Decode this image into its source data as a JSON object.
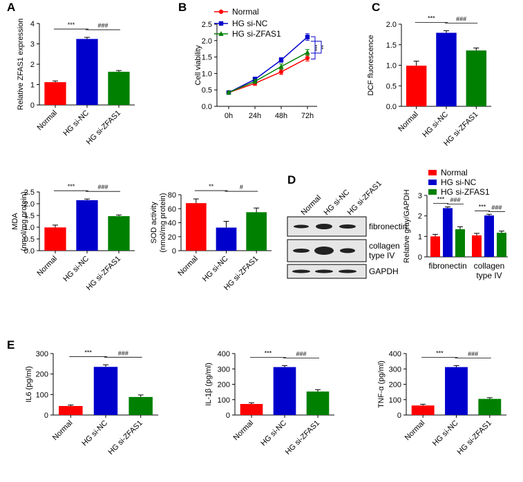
{
  "colors": {
    "normal": "#ff0000",
    "sinc": "#0000cc",
    "zfas1": "#008000",
    "axis": "#000000",
    "blot_band": "#222222"
  },
  "panel_letters": [
    "A",
    "B",
    "C",
    "D",
    "E"
  ],
  "chart_data": [
    {
      "id": "A",
      "type": "bar",
      "ylabel": "Relative ZFAS1 expression",
      "categories": [
        "Normal",
        "HG si-NC",
        "HG si-ZFAS1"
      ],
      "values": [
        1.12,
        3.24,
        1.63
      ],
      "errors": [
        0.06,
        0.08,
        0.06
      ],
      "ylim": [
        0,
        4
      ],
      "yticks": [
        0,
        1,
        2,
        3,
        4
      ],
      "annotations": [
        {
          "from": 0,
          "to": 1,
          "text": "***"
        },
        {
          "from": 1,
          "to": 2,
          "text": "###"
        }
      ]
    },
    {
      "id": "B",
      "type": "line",
      "ylabel": "Cell viability",
      "x": [
        "0h",
        "24h",
        "48h",
        "72h"
      ],
      "series": [
        {
          "name": "Normal",
          "values": [
            0.42,
            0.7,
            1.05,
            1.47
          ],
          "errors": [
            0.04,
            0.06,
            0.08,
            0.09
          ],
          "marker": "circle"
        },
        {
          "name": "HG si-NC",
          "values": [
            0.42,
            0.82,
            1.41,
            2.11
          ],
          "errors": [
            0.04,
            0.07,
            0.07,
            0.1
          ],
          "marker": "square"
        },
        {
          "name": "HG si-ZFAS1",
          "values": [
            0.42,
            0.76,
            1.21,
            1.64
          ],
          "errors": [
            0.04,
            0.06,
            0.08,
            0.09
          ],
          "marker": "triangle"
        }
      ],
      "ylim": [
        0,
        2.5
      ],
      "yticks": [
        "0.0",
        "0.5",
        "1.0",
        "1.5",
        "2.0",
        "2.5"
      ],
      "legend": [
        "Normal",
        "HG si-NC",
        "HG si-ZFAS1"
      ],
      "annotations": [
        "***",
        "**"
      ]
    },
    {
      "id": "C",
      "type": "bar",
      "ylabel": "DCF fluorescence",
      "categories": [
        "Normal",
        "HG si-NC",
        "HG si-ZFAS1"
      ],
      "values": [
        0.99,
        1.79,
        1.36
      ],
      "errors": [
        0.11,
        0.05,
        0.06
      ],
      "ylim": [
        0,
        2.0
      ],
      "yticks": [
        "0.0",
        "0.5",
        "1.0",
        "1.5",
        "2.0"
      ],
      "annotations": [
        {
          "from": 0,
          "to": 1,
          "text": "***"
        },
        {
          "from": 1,
          "to": 2,
          "text": "###"
        }
      ]
    },
    {
      "id": "MDA",
      "type": "bar",
      "ylabel": "MDA",
      "ylabel2": "(nmol/mg protein)",
      "categories": [
        "Normal",
        "HG si-NC",
        "HG si-ZFAS1"
      ],
      "values": [
        0.99,
        2.15,
        1.47
      ],
      "errors": [
        0.1,
        0.05,
        0.05
      ],
      "ylim": [
        0,
        2.5
      ],
      "yticks": [
        "0.0",
        "0.5",
        "1.0",
        "1.5",
        "2.0",
        "2.5"
      ],
      "annotations": [
        {
          "from": 0,
          "to": 1,
          "text": "***"
        },
        {
          "from": 1,
          "to": 2,
          "text": "###"
        }
      ]
    },
    {
      "id": "SOD",
      "type": "bar",
      "ylabel": "SOD activity",
      "ylabel2": "(nmol/mg protein)",
      "categories": [
        "Normal",
        "HG si-NC",
        "HG si-ZFAS1"
      ],
      "values": [
        68,
        33,
        55
      ],
      "errors": [
        6,
        9,
        6
      ],
      "ylim": [
        0,
        80
      ],
      "yticks": [
        0,
        20,
        40,
        60,
        80
      ],
      "annotations": [
        {
          "from": 0,
          "to": 1,
          "text": "**"
        },
        {
          "from": 1,
          "to": 2,
          "text": "#"
        }
      ]
    },
    {
      "id": "D",
      "type": "bar",
      "ylabel": "Relative gray/GAPDH",
      "groups": [
        "fibronectin",
        "collagen type IV"
      ],
      "series": [
        {
          "name": "Normal",
          "values": [
            1.0,
            1.05
          ],
          "errors": [
            0.1,
            0.1
          ]
        },
        {
          "name": "HG si-NC",
          "values": [
            2.38,
            2.02
          ],
          "errors": [
            0.06,
            0.06
          ]
        },
        {
          "name": "HG si-ZFAS1",
          "values": [
            1.35,
            1.18
          ],
          "errors": [
            0.12,
            0.08
          ]
        }
      ],
      "ylim": [
        0,
        3
      ],
      "yticks": [
        0,
        1,
        2,
        3
      ],
      "legend": [
        "Normal",
        "HG si-NC",
        "HG si-ZFAS1"
      ],
      "annotations": [
        "***",
        "###",
        "***",
        "###"
      ]
    },
    {
      "id": "IL6",
      "type": "bar",
      "ylabel": "IL6 (pg/ml)",
      "categories": [
        "Normal",
        "HG si-NC",
        "HG si-ZFAS1"
      ],
      "values": [
        44,
        235,
        88
      ],
      "errors": [
        5,
        10,
        10
      ],
      "ylim": [
        0,
        300
      ],
      "yticks": [
        0,
        100,
        200,
        300
      ],
      "annotations": [
        {
          "from": 0,
          "to": 1,
          "text": "***"
        },
        {
          "from": 1,
          "to": 2,
          "text": "###"
        }
      ]
    },
    {
      "id": "IL1b",
      "type": "bar",
      "ylabel": "IL-1β (pg/ml)",
      "categories": [
        "Normal",
        "HG si-NC",
        "HG si-ZFAS1"
      ],
      "values": [
        72,
        312,
        153
      ],
      "errors": [
        8,
        10,
        12
      ],
      "ylim": [
        0,
        400
      ],
      "yticks": [
        0,
        100,
        200,
        300,
        400
      ],
      "annotations": [
        {
          "from": 0,
          "to": 1,
          "text": "***"
        },
        {
          "from": 1,
          "to": 2,
          "text": "###"
        }
      ]
    },
    {
      "id": "TNF",
      "type": "bar",
      "ylabel": "TNF-α (pg/ml)",
      "categories": [
        "Normal",
        "HG si-NC",
        "HG si-ZFAS1"
      ],
      "values": [
        62,
        312,
        105
      ],
      "errors": [
        8,
        10,
        8
      ],
      "ylim": [
        0,
        400
      ],
      "yticks": [
        0,
        100,
        200,
        300,
        400
      ],
      "annotations": [
        {
          "from": 0,
          "to": 1,
          "text": "***"
        },
        {
          "from": 1,
          "to": 2,
          "text": "###"
        }
      ]
    }
  ],
  "blot": {
    "lanes": [
      "Normal",
      "HG si-NC",
      "HG si-ZFAS1"
    ],
    "rows": [
      {
        "label": "fibronectin",
        "label2": ""
      },
      {
        "label": "collagen",
        "label2": "type IV"
      },
      {
        "label": "GAPDH",
        "label2": ""
      }
    ]
  }
}
